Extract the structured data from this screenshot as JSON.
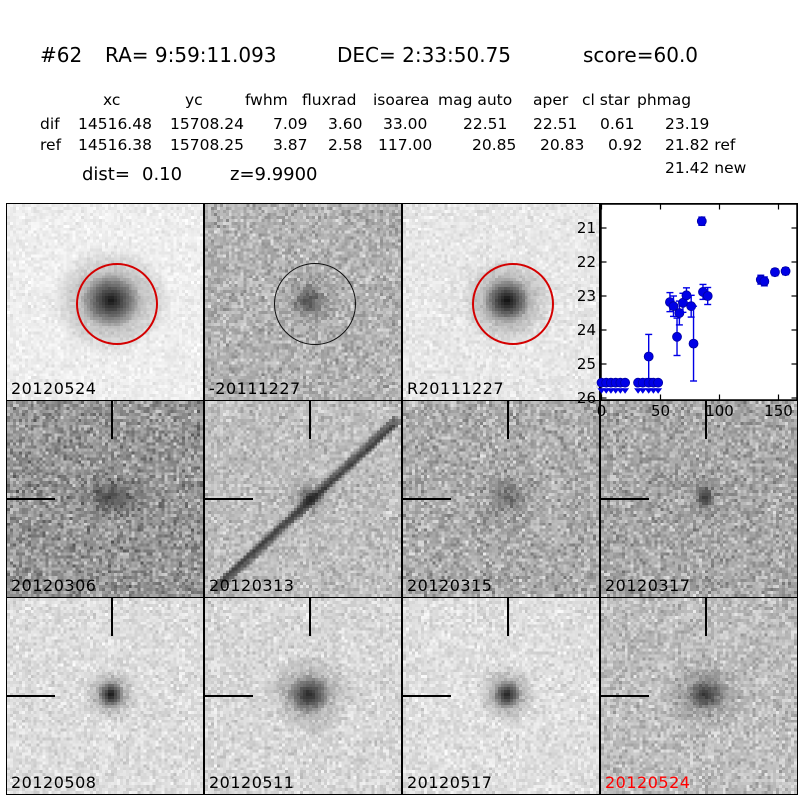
{
  "header": {
    "id": "#62",
    "ra": "RA= 9:59:11.093",
    "dec": "DEC= 2:33:50.75",
    "score": "score=60.0"
  },
  "table": {
    "columns": [
      "xc",
      "yc",
      "fwhm",
      "fluxrad",
      "isoarea",
      "mag auto",
      "aper",
      "cl star",
      "phmag"
    ],
    "rows": [
      {
        "cells": [
          "dif",
          "14516.48",
          "15708.24",
          "7.09",
          "3.60",
          "33.00",
          "22.51",
          "22.51",
          "0.61",
          "23.19"
        ]
      },
      {
        "cells": [
          "ref",
          "14516.38",
          "15708.25",
          "3.87",
          "2.58",
          "117.00",
          "20.85",
          "20.83",
          "0.92",
          "21.82 ref"
        ]
      }
    ],
    "extra_phmag": "21.42 new",
    "dist_label": "dist=",
    "dist_value": "0.10",
    "z_value": "z=9.9900"
  },
  "panels": [
    {
      "row": 0,
      "col": 0,
      "label": "20120524",
      "label_color": "#000000",
      "overlay": "red-circle",
      "bg": 238,
      "noise": 5,
      "blob_a": 0.85,
      "blob_r": 11,
      "blob_sx": 1.1
    },
    {
      "row": 0,
      "col": 1,
      "label": "-20111227",
      "label_color": "#000000",
      "overlay": "black-circle",
      "bg": 178,
      "noise": 13,
      "blob_a": 0.45,
      "blob_r": 7,
      "blob_sx": 1
    },
    {
      "row": 0,
      "col": 2,
      "label": "R20111227",
      "label_color": "#000000",
      "overlay": "red-circle",
      "bg": 231,
      "noise": 6,
      "blob_a": 0.9,
      "blob_r": 9,
      "blob_sx": 1.05
    },
    {
      "row": 1,
      "col": 0,
      "label": "20120306",
      "label_color": "#000000",
      "overlay": "crosshair",
      "bg": 150,
      "noise": 17,
      "blob_a": 0.45,
      "blob_r": 6,
      "blob_sx": 1.6
    },
    {
      "row": 1,
      "col": 1,
      "label": "20120313",
      "label_color": "#000000",
      "overlay": "crosshair",
      "bg": 190,
      "noise": 11,
      "blob_a": 0.5,
      "blob_r": 5,
      "blob_sx": 1,
      "streak": true
    },
    {
      "row": 1,
      "col": 2,
      "label": "20120315",
      "label_color": "#000000",
      "overlay": "crosshair",
      "bg": 172,
      "noise": 15,
      "blob_a": 0.32,
      "blob_r": 8,
      "blob_sx": 1
    },
    {
      "row": 1,
      "col": 3,
      "label": "20120317",
      "label_color": "#000000",
      "overlay": "crosshair",
      "bg": 167,
      "noise": 15,
      "blob_a": 0.6,
      "blob_r": 5,
      "blob_sx": 0.75
    },
    {
      "row": 2,
      "col": 0,
      "label": "20120508",
      "label_color": "#000000",
      "overlay": "crosshair",
      "bg": 221,
      "noise": 8,
      "blob_a": 0.85,
      "blob_r": 5.5,
      "blob_sx": 1
    },
    {
      "row": 2,
      "col": 1,
      "label": "20120511",
      "label_color": "#000000",
      "overlay": "crosshair",
      "bg": 215,
      "noise": 9,
      "blob_a": 0.75,
      "blob_r": 8,
      "blob_sx": 1.1
    },
    {
      "row": 2,
      "col": 2,
      "label": "20120517",
      "label_color": "#000000",
      "overlay": "crosshair",
      "bg": 223,
      "noise": 8,
      "blob_a": 0.8,
      "blob_r": 6,
      "blob_sx": 1
    },
    {
      "row": 2,
      "col": 3,
      "label": "20120524",
      "label_color": "#ff0000",
      "overlay": "crosshair",
      "bg": 190,
      "noise": 12,
      "blob_a": 0.65,
      "blob_r": 7,
      "blob_sx": 1.15
    }
  ],
  "colors": {
    "ring_red": "#d40000",
    "ring_black": "#101010",
    "marker_blue": "#0000e6"
  },
  "chart_data": {
    "type": "scatter",
    "title": "",
    "xlabel": "",
    "ylabel": "",
    "xlim": [
      -2,
      165
    ],
    "ylim": [
      26.05,
      20.25
    ],
    "y_inverted": true,
    "x_ticks": [
      0,
      50,
      100,
      150
    ],
    "y_ticks": [
      21,
      22,
      23,
      24,
      25,
      26
    ],
    "legend": "none",
    "grid": false,
    "points": [
      {
        "x": 40,
        "y": 24.78,
        "err": 0.65
      },
      {
        "x": 58,
        "y": 23.18,
        "err": 0.28
      },
      {
        "x": 61,
        "y": 23.3,
        "err": 0.3
      },
      {
        "x": 64,
        "y": 24.2,
        "err": 0.55
      },
      {
        "x": 66,
        "y": 23.5,
        "err": 0.35
      },
      {
        "x": 69,
        "y": 23.2,
        "err": 0.28
      },
      {
        "x": 72,
        "y": 22.98,
        "err": 0.22
      },
      {
        "x": 76,
        "y": 23.3,
        "err": 0.32
      },
      {
        "x": 78,
        "y": 24.4,
        "err": 1.1
      },
      {
        "x": 85,
        "y": 20.8,
        "err": 0.12
      },
      {
        "x": 86,
        "y": 22.88,
        "err": 0.22
      },
      {
        "x": 90,
        "y": 23.0,
        "err": 0.25
      },
      {
        "x": 135,
        "y": 22.52,
        "err": 0.13
      },
      {
        "x": 138,
        "y": 22.57,
        "err": 0.13
      },
      {
        "x": 147,
        "y": 22.3,
        "err": 0.1
      },
      {
        "x": 156,
        "y": 22.27,
        "err": 0.1
      }
    ],
    "upper_limits": [
      {
        "x": 0,
        "y": 25.55
      },
      {
        "x": 4,
        "y": 25.55
      },
      {
        "x": 8,
        "y": 25.55
      },
      {
        "x": 12,
        "y": 25.55
      },
      {
        "x": 16,
        "y": 25.55
      },
      {
        "x": 20,
        "y": 25.55
      },
      {
        "x": 31,
        "y": 25.55
      },
      {
        "x": 35,
        "y": 25.55
      },
      {
        "x": 40,
        "y": 25.55
      },
      {
        "x": 44,
        "y": 25.55
      },
      {
        "x": 48,
        "y": 25.55
      }
    ]
  }
}
